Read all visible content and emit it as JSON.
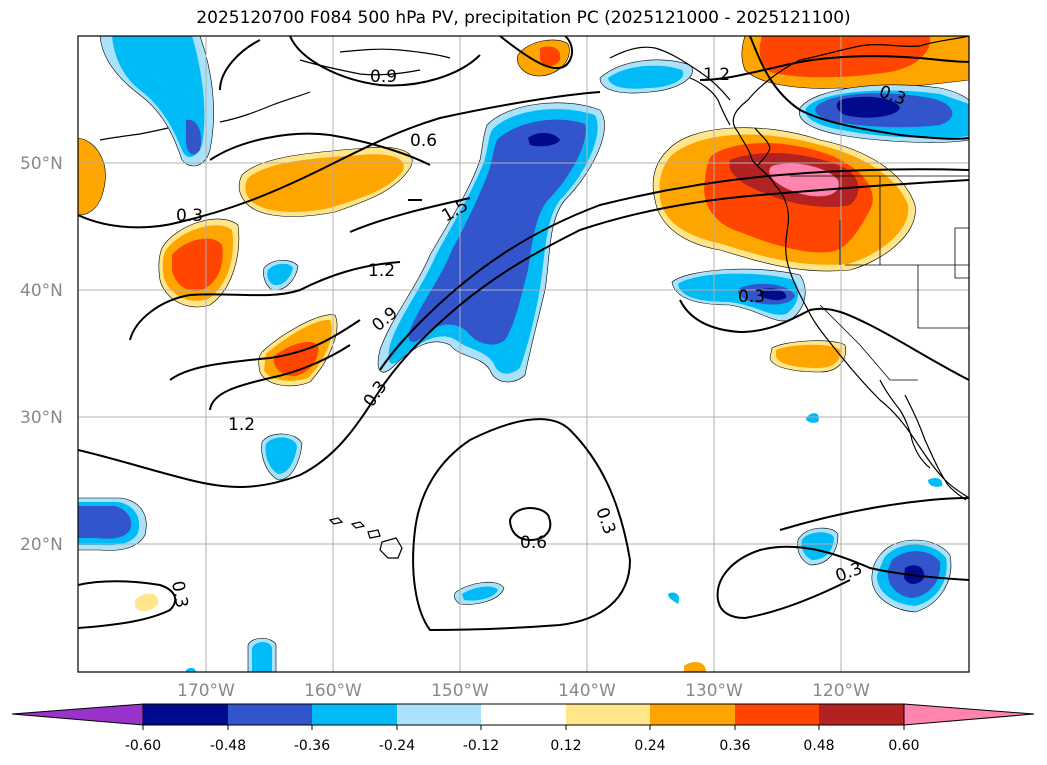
{
  "title": "2025120700 F084 500 hPa PV, precipitation PC (2025121000 - 2025121100)",
  "lat_labels": [
    "50°N",
    "40°N",
    "30°N",
    "20°N"
  ],
  "lon_labels": [
    "170°W",
    "160°W",
    "150°W",
    "140°W",
    "130°W",
    "120°W"
  ],
  "contour_labels": [
    "0.9",
    "1.2",
    "0.3",
    "0.6",
    "1.5",
    "1.2",
    "0.9",
    "0.3",
    "1.2",
    "0.3",
    "0.6",
    "0.3",
    "0.3",
    "0.3",
    "0.3"
  ],
  "colorbar": {
    "ticks": [
      "-0.60",
      "-0.48",
      "-0.36",
      "-0.24",
      "-0.12",
      "0.12",
      "0.24",
      "0.36",
      "0.48",
      "0.60"
    ],
    "colors": [
      "#9933cc",
      "#000a8c",
      "#3355cc",
      "#00bbf5",
      "#a9e2fa",
      "#ffffff",
      "#ffe68a",
      "#ffa500",
      "#ff4500",
      "#b22222",
      "#ff85b0"
    ]
  },
  "colors": {
    "pos_light": "#ffe68a",
    "pos_orange": "#ffa500",
    "pos_red": "#ff4500",
    "pos_darkred": "#b22222",
    "pos_pink": "#ff85b0",
    "neg_light": "#a9e2fa",
    "neg_cyan": "#00bbf5",
    "neg_blue": "#3355cc",
    "neg_navy": "#000a8c",
    "neg_purple": "#9933cc"
  }
}
